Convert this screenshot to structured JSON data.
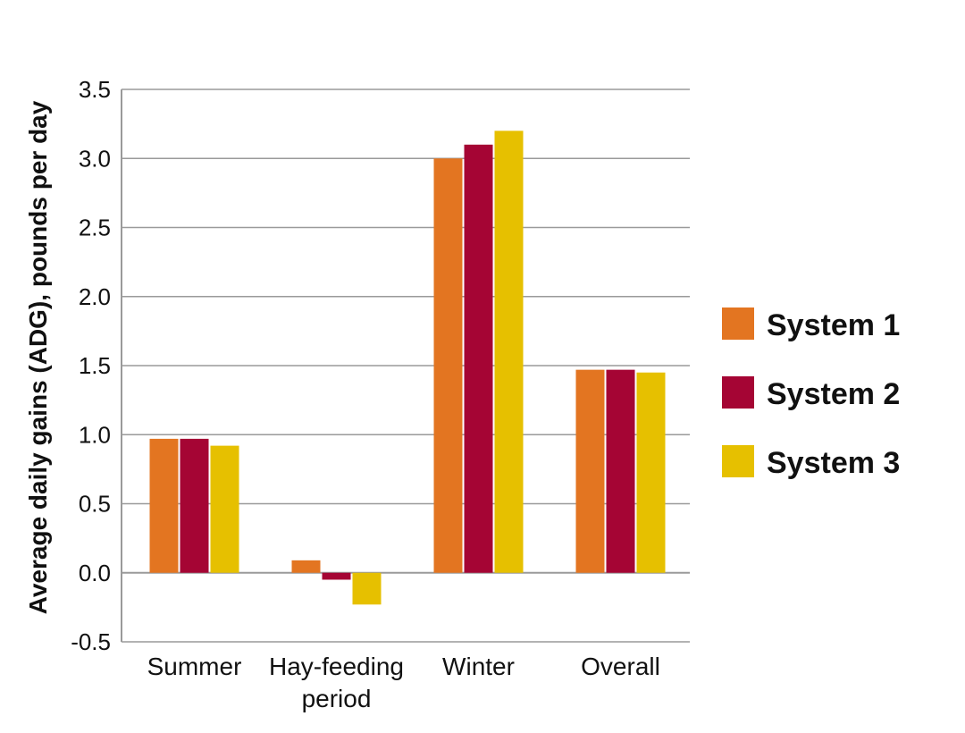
{
  "chart_data": {
    "type": "bar",
    "title": "",
    "xlabel": "",
    "ylabel": "Average daily gains (ADG), pounds per day",
    "ylim": [
      -0.5,
      3.5
    ],
    "yticks": [
      -0.5,
      0.0,
      0.5,
      1.0,
      1.5,
      2.0,
      2.5,
      3.0,
      3.5
    ],
    "ytick_labels": [
      "-0.5",
      "0.0",
      "0.5",
      "1.0",
      "1.5",
      "2.0",
      "2.5",
      "3.0",
      "3.5"
    ],
    "categories": [
      [
        "Summer"
      ],
      [
        "Hay-feeding",
        "period"
      ],
      [
        "Winter"
      ],
      [
        "Overall"
      ]
    ],
    "series": [
      {
        "name": "System 1",
        "color": "#E37521",
        "values": [
          0.97,
          0.09,
          3.0,
          1.47
        ]
      },
      {
        "name": "System 2",
        "color": "#A50534",
        "values": [
          0.97,
          -0.05,
          3.1,
          1.47
        ]
      },
      {
        "name": "System 3",
        "color": "#E6C000",
        "values": [
          0.92,
          -0.23,
          3.2,
          1.45
        ]
      }
    ],
    "grid": true,
    "legend_position": "right"
  }
}
